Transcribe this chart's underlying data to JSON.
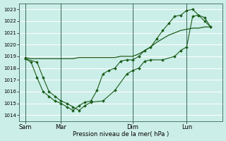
{
  "background_color": "#cceee8",
  "plot_bg_color": "#cceee8",
  "grid_color": "#aaddcc",
  "line_color": "#1a5c1a",
  "marker_color": "#1a5c1a",
  "ylabel_ticks": [
    1014,
    1015,
    1016,
    1017,
    1018,
    1019,
    1020,
    1021,
    1022,
    1023
  ],
  "ylim": [
    1013.5,
    1023.5
  ],
  "xlabel": "Pression niveau de la mer( hPa )",
  "day_labels": [
    "Sam",
    "Mar",
    "Dim",
    "Lun"
  ],
  "day_positions": [
    0,
    6,
    18,
    27
  ],
  "xlim": [
    -1,
    33
  ],
  "vline_positions": [
    0,
    6,
    18,
    27
  ],
  "series1_x": [
    0,
    1,
    2,
    3,
    4,
    5,
    6,
    7,
    8,
    9,
    10,
    11,
    12,
    13,
    14,
    15,
    16,
    17,
    18,
    19,
    20,
    21,
    22,
    23,
    24,
    25,
    26,
    27,
    28,
    29,
    30,
    31
  ],
  "series1_y": [
    1018.9,
    1018.8,
    1018.8,
    1018.8,
    1018.8,
    1018.8,
    1018.8,
    1018.8,
    1018.8,
    1018.9,
    1018.9,
    1018.9,
    1018.9,
    1018.9,
    1018.9,
    1018.9,
    1019.0,
    1019.0,
    1019.0,
    1019.2,
    1019.5,
    1019.8,
    1020.2,
    1020.5,
    1020.8,
    1021.0,
    1021.2,
    1021.3,
    1021.4,
    1021.4,
    1021.5,
    1021.5
  ],
  "series2_x": [
    0,
    2,
    3,
    4,
    5,
    6,
    7,
    8,
    9,
    10,
    11,
    13,
    15,
    17,
    18,
    19,
    20,
    21,
    23,
    25,
    26,
    27,
    28,
    29,
    30,
    31
  ],
  "series2_y": [
    1018.8,
    1018.5,
    1017.2,
    1016.0,
    1015.6,
    1015.2,
    1015.0,
    1014.7,
    1014.4,
    1014.8,
    1015.1,
    1015.2,
    1016.1,
    1017.5,
    1017.8,
    1018.0,
    1018.6,
    1018.7,
    1018.7,
    1019.0,
    1019.5,
    1019.8,
    1022.4,
    1022.5,
    1022.3,
    1021.5
  ],
  "series3_x": [
    0,
    1,
    2,
    3,
    4,
    5,
    6,
    7,
    8,
    9,
    10,
    11,
    12,
    13,
    14,
    15,
    16,
    17,
    18,
    19,
    20,
    21,
    22,
    23,
    24,
    25,
    26,
    27,
    28,
    29,
    30,
    31
  ],
  "series3_y": [
    1018.8,
    1018.5,
    1017.2,
    1016.0,
    1015.6,
    1015.2,
    1015.0,
    1014.7,
    1014.4,
    1014.8,
    1015.1,
    1015.2,
    1016.1,
    1017.5,
    1017.8,
    1018.0,
    1018.6,
    1018.7,
    1018.7,
    1019.0,
    1019.5,
    1019.8,
    1020.5,
    1021.2,
    1021.8,
    1022.4,
    1022.5,
    1022.9,
    1023.0,
    1022.5,
    1022.0,
    1021.5
  ]
}
